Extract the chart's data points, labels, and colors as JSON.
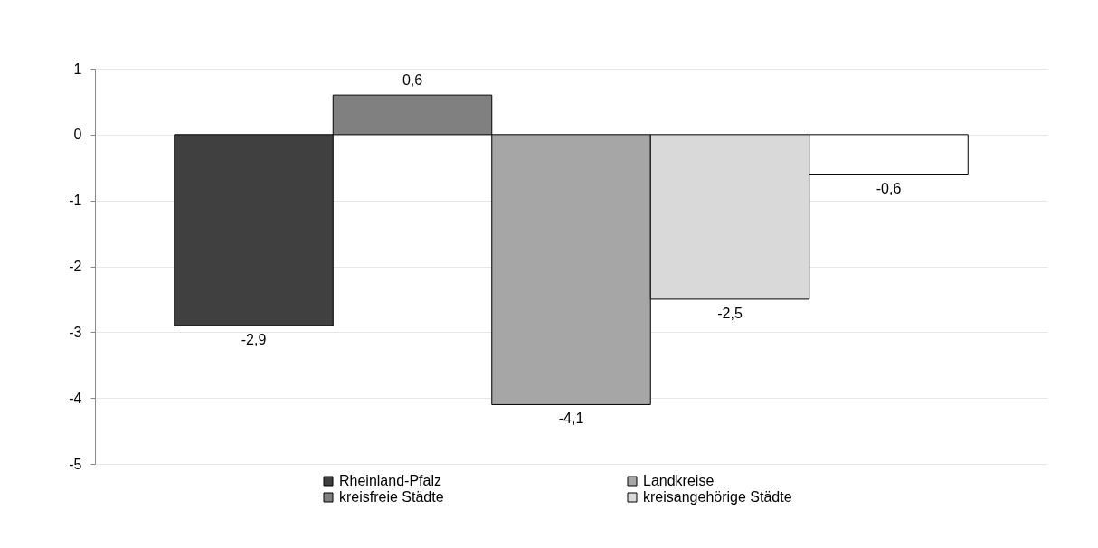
{
  "chart_data": {
    "type": "bar",
    "categories": [
      null
    ],
    "series": [
      {
        "name": "Rheinland-Pfalz",
        "color": "#404040",
        "values": [
          -2.9
        ],
        "value_labels": [
          "-2,9"
        ]
      },
      {
        "name": "kreisfreie Städte",
        "color": "#808080",
        "values": [
          0.6
        ],
        "value_labels": [
          "0,6"
        ]
      },
      {
        "name": "Landkreise",
        "color": "#a6a6a6",
        "values": [
          -4.1
        ],
        "value_labels": [
          "-4,1"
        ]
      },
      {
        "name": "kreisangehörige Städte",
        "color": "#d9d9d9",
        "values": [
          -2.5
        ],
        "value_labels": [
          "-2,5"
        ]
      },
      {
        "color": "#ffffff",
        "values": [
          -0.6
        ],
        "value_labels": [
          "-0,6"
        ]
      }
    ],
    "ylim": [
      -5,
      1
    ],
    "yticks": [
      {
        "value": -5,
        "label": "-5"
      },
      {
        "value": -4,
        "label": "-4"
      },
      {
        "value": -3,
        "label": "-3"
      },
      {
        "value": -2,
        "label": "-2"
      },
      {
        "value": -1,
        "label": "-1"
      },
      {
        "value": 0,
        "label": "0"
      },
      {
        "value": 1,
        "label": "1"
      }
    ],
    "grid": "y",
    "legend": "bottom"
  }
}
